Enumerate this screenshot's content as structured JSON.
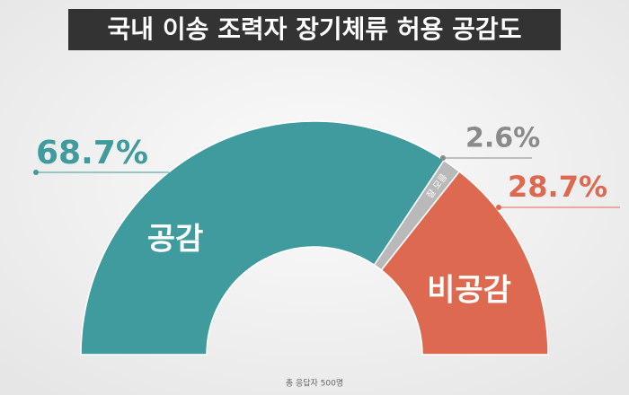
{
  "chart_data": {
    "type": "donut",
    "title": "국내 이송 조력자 장기체류 허용 공감도",
    "series": [
      {
        "name": "공감",
        "color": "#3f9b9d",
        "values": [
          68.7
        ],
        "value_labels": [
          "68.7%"
        ]
      },
      {
        "name": "잘 모름",
        "color": "#b9b9b9",
        "values": [
          2.6
        ],
        "value_labels": [
          "2.6%"
        ]
      },
      {
        "name": "비공감",
        "color": "#dd6a50",
        "values": [
          28.7
        ],
        "value_labels": [
          "28.7%"
        ]
      }
    ],
    "note": "총 응답자 500명"
  }
}
